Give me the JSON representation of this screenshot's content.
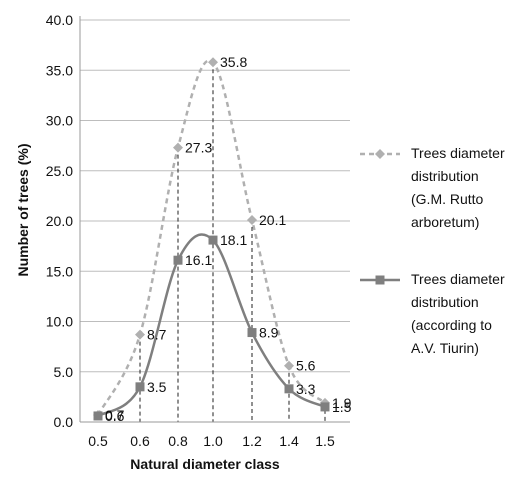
{
  "chart_data": {
    "type": "line",
    "title": "",
    "xlabel": "Natural diameter class",
    "ylabel": "Number of trees (%)",
    "ylim": [
      0,
      40
    ],
    "yticks": [
      "0.0",
      "5.0",
      "10.0",
      "15.0",
      "20.0",
      "25.0",
      "30.0",
      "35.0",
      "40.0"
    ],
    "categories": [
      "0.5",
      "0.6",
      "0.8",
      "1.0",
      "1.2",
      "1.4",
      "1.5"
    ],
    "grid": "horizontal",
    "legend_position": "right",
    "series": [
      {
        "name": "Trees diameter distribution (G.M. Rutto arboretum)",
        "legend_lines": [
          "Trees diameter",
          "distribution",
          "(G.M. Rutto",
          "arboretum)"
        ],
        "style": "dashed",
        "marker": "diamond",
        "color": "#b0b0b0",
        "values": [
          0.7,
          8.7,
          27.3,
          35.8,
          20.1,
          5.6,
          1.9
        ],
        "labels": [
          "0.7",
          "8.7",
          "27.3",
          "35.8",
          "20.1",
          "5.6",
          "1.9"
        ]
      },
      {
        "name": "Trees diameter distribution (according to A.V. Tiurin)",
        "legend_lines": [
          "Trees diameter",
          "distribution",
          "(according to",
          "A.V. Tiurin)"
        ],
        "style": "solid-smooth",
        "marker": "square",
        "color": "#7f7f7f",
        "values": [
          0.6,
          3.5,
          16.1,
          18.1,
          8.9,
          3.3,
          1.5
        ],
        "labels": [
          "0.6",
          "3.5",
          "16.1",
          "18.1",
          "8.9",
          "3.3",
          "1.5"
        ]
      }
    ],
    "drop_lines": true
  }
}
